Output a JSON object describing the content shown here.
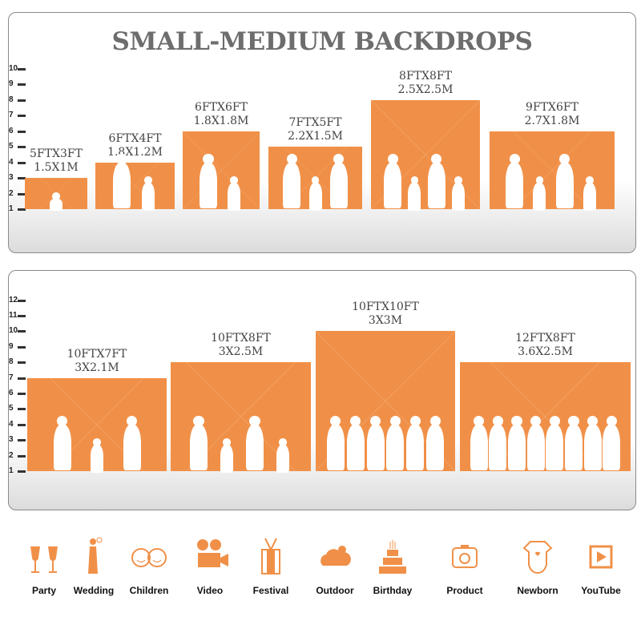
{
  "title": "SMALL-MEDIUM BACKDROPS",
  "panel1": {
    "ruler": [
      "1",
      "2",
      "3",
      "4",
      "5",
      "6",
      "7",
      "8",
      "9",
      "10"
    ],
    "backdrops": [
      {
        "ft": "5FTX3FT",
        "m": "1.5X1M"
      },
      {
        "ft": "6FTX4FT",
        "m": "1.8X1.2M"
      },
      {
        "ft": "6FTX6FT",
        "m": "1.8X1.8M"
      },
      {
        "ft": "7FTX5FT",
        "m": "2.2X1.5M"
      },
      {
        "ft": "8FTX8FT",
        "m": "2.5X2.5M"
      },
      {
        "ft": "9FTX6FT",
        "m": "2.7X1.8M"
      }
    ]
  },
  "panel2": {
    "ruler": [
      "1",
      "2",
      "3",
      "4",
      "5",
      "6",
      "7",
      "8",
      "9",
      "10",
      "11",
      "12"
    ],
    "backdrops": [
      {
        "ft": "10FTX7FT",
        "m": "3X2.1M"
      },
      {
        "ft": "10FTX8FT",
        "m": "3X2.5M"
      },
      {
        "ft": "10FTX10FT",
        "m": "3X3M"
      },
      {
        "ft": "12FTX8FT",
        "m": "3.6X2.5M"
      }
    ]
  },
  "uses": [
    {
      "label": "Party",
      "icon": "champagne-glasses-icon"
    },
    {
      "label": "Wedding",
      "icon": "wedding-couple-icon"
    },
    {
      "label": "Children",
      "icon": "children-faces-icon"
    },
    {
      "label": "Video",
      "icon": "film-camera-icon"
    },
    {
      "label": "Festival",
      "icon": "gift-box-icon"
    },
    {
      "label": "Outdoor",
      "icon": "cloud-icon"
    },
    {
      "label": "Birthday",
      "icon": "birthday-cake-icon"
    },
    {
      "label": "Product",
      "icon": "camera-icon"
    },
    {
      "label": "Newborn",
      "icon": "baby-onesie-icon"
    },
    {
      "label": "YouTube",
      "icon": "play-button-icon"
    }
  ],
  "colors": {
    "accent": "#f09048",
    "title": "#6d6d6d"
  }
}
